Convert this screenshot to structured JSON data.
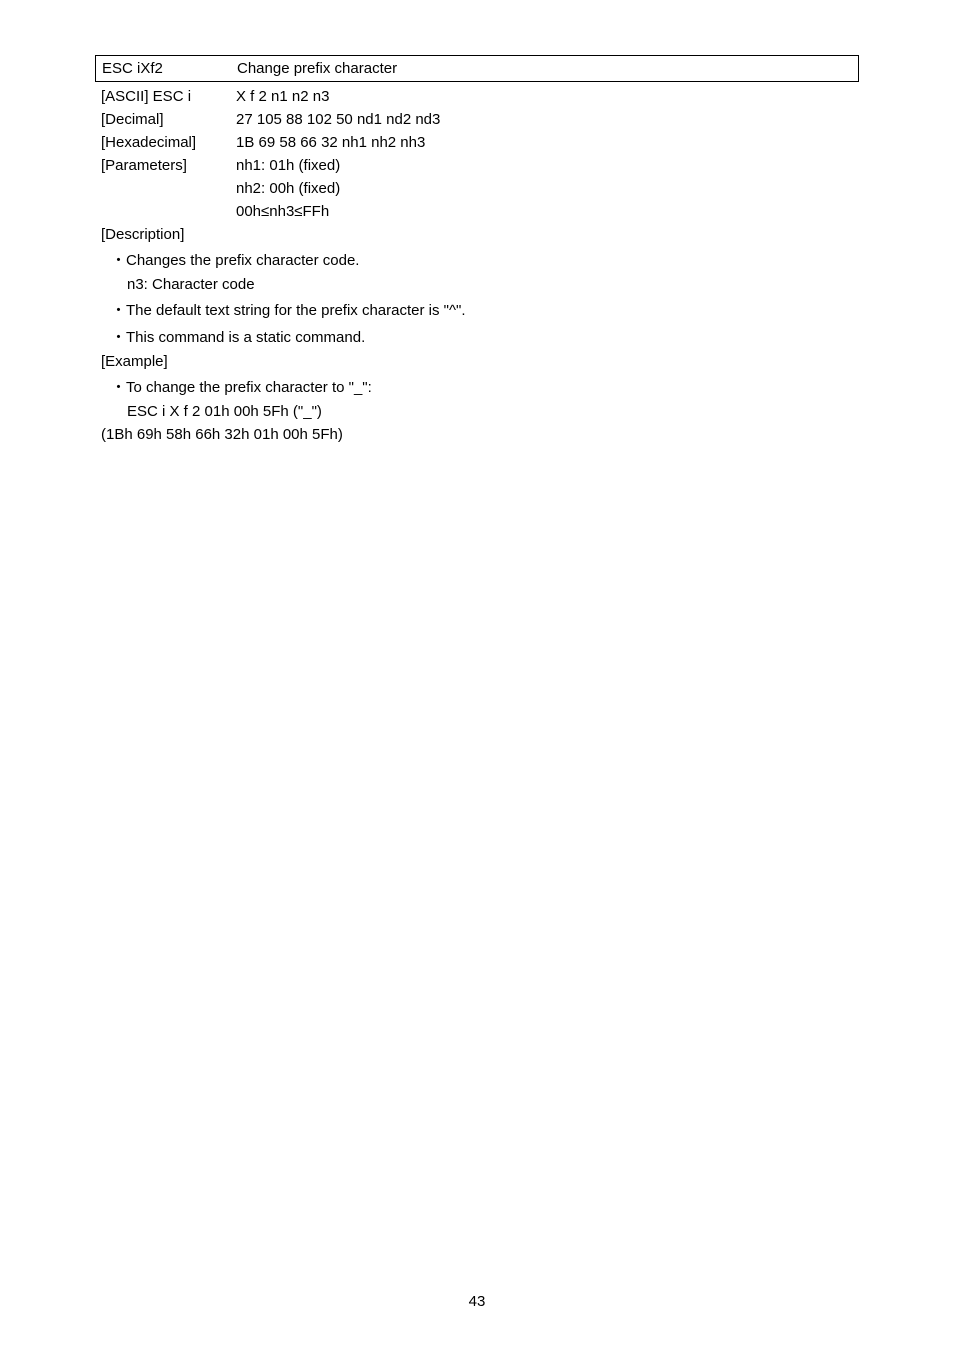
{
  "header": {
    "command_name": "ESC iXf2",
    "command_desc": "Change prefix character"
  },
  "rows": {
    "ascii": {
      "label": "[ASCII]   ESC i",
      "value": "X   f    2   n1   n2   n3"
    },
    "decimal": {
      "label": "[Decimal]",
      "value": "27    105 88 102 50 nd1 nd2 nd3"
    },
    "hexadecimal": {
      "label": "[Hexadecimal]",
      "value": "1B    69    58 66    32 nh1 nh2 nh3"
    },
    "parameters": {
      "label": "[Parameters]",
      "value": "nh1: 01h (fixed)"
    },
    "param2": "nh2: 00h (fixed)",
    "param3": "00h≤nh3≤FFh"
  },
  "description": {
    "label": "[Description]",
    "bullet1": "・Changes the prefix character code.",
    "sub1": "n3: Character code",
    "bullet2": "・The default text string for the prefix character is \"^\".",
    "bullet3": "・This command is a static command."
  },
  "example": {
    "label": "[Example]",
    "bullet1": "・To change the prefix character to \"_\":",
    "sub1": "ESC i X f 2 01h 00h 5Fh (\"_\")",
    "line1": "(1Bh 69h 58h 66h 32h 01h 00h 5Fh)"
  },
  "page_number": "43"
}
